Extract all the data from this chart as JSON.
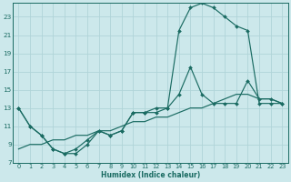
{
  "xlabel": "Humidex (Indice chaleur)",
  "bg_color": "#cce8eb",
  "line_color": "#1a6b62",
  "grid_color": "#b0d4d8",
  "xlim": [
    -0.5,
    23.5
  ],
  "ylim": [
    7,
    24.5
  ],
  "xticks": [
    0,
    1,
    2,
    3,
    4,
    5,
    6,
    7,
    8,
    9,
    10,
    11,
    12,
    13,
    14,
    15,
    16,
    17,
    18,
    19,
    20,
    21,
    22,
    23
  ],
  "yticks": [
    7,
    9,
    11,
    13,
    15,
    17,
    19,
    21,
    23
  ],
  "line1_x": [
    0,
    1,
    2,
    3,
    4,
    5,
    6,
    7,
    8,
    9,
    10,
    11,
    12,
    13,
    14,
    15,
    16,
    17,
    18,
    19,
    20,
    21,
    22,
    23
  ],
  "line1_y": [
    13.0,
    11.0,
    10.0,
    8.5,
    8.0,
    8.0,
    9.0,
    10.5,
    10.0,
    10.5,
    12.5,
    12.5,
    12.5,
    13.0,
    21.5,
    24.0,
    24.5,
    24.0,
    23.0,
    22.0,
    21.5,
    13.5,
    13.5,
    13.5
  ],
  "line2_x": [
    0,
    1,
    2,
    3,
    4,
    5,
    6,
    7,
    8,
    9,
    10,
    11,
    12,
    13,
    14,
    15,
    16,
    17,
    18,
    19,
    20,
    21,
    22,
    23
  ],
  "line2_y": [
    13.0,
    11.0,
    10.0,
    8.5,
    8.0,
    8.5,
    9.5,
    10.5,
    10.0,
    10.5,
    12.5,
    12.5,
    13.0,
    13.0,
    14.5,
    17.5,
    14.5,
    13.5,
    13.5,
    13.5,
    16.0,
    14.0,
    14.0,
    13.5
  ],
  "line3_x": [
    0,
    1,
    2,
    3,
    4,
    5,
    6,
    7,
    8,
    9,
    10,
    11,
    12,
    13,
    14,
    15,
    16,
    17,
    18,
    19,
    20,
    21,
    22,
    23
  ],
  "line3_y": [
    8.5,
    9.0,
    9.0,
    9.5,
    9.5,
    10.0,
    10.0,
    10.5,
    10.5,
    11.0,
    11.5,
    11.5,
    12.0,
    12.0,
    12.5,
    13.0,
    13.0,
    13.5,
    14.0,
    14.5,
    14.5,
    14.0,
    14.0,
    13.5
  ]
}
